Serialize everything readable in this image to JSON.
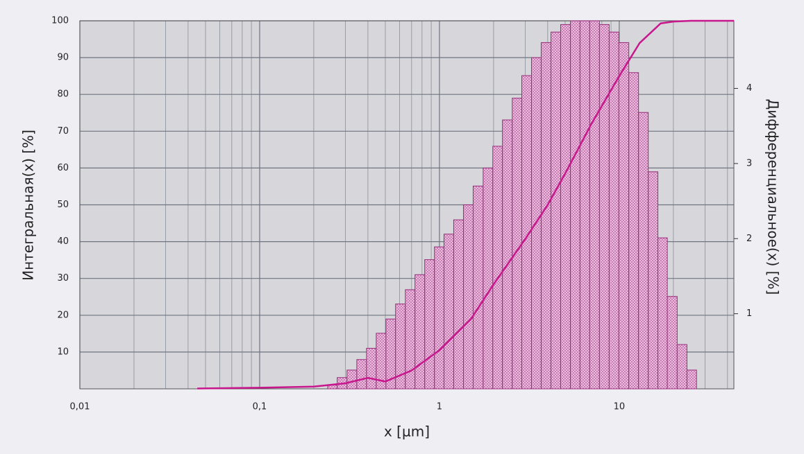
{
  "chart_data": {
    "type": "histogram",
    "x_label": "x [µm]",
    "y_label": "Интегральная(x) [%]",
    "y2_label": "Дифференциальное(x) [%]",
    "xscale": "log",
    "grid": true,
    "xlim": [
      0.01,
      43.4
    ],
    "xticks": [
      {
        "value": 0.01,
        "label": "0,01"
      },
      {
        "value": 0.1,
        "label": "0,1"
      },
      1,
      10
    ],
    "ylim": [
      0,
      100
    ],
    "yticks": [
      10,
      20,
      30,
      40,
      50,
      60,
      70,
      80,
      90,
      100
    ],
    "y2lim": [
      0,
      4.9
    ],
    "y2ticks": [
      1,
      2,
      3,
      4
    ],
    "bins": [
      0.239,
      0.27,
      0.306,
      0.347,
      0.393,
      0.445,
      0.504,
      0.57,
      0.646,
      0.731,
      0.828,
      0.938,
      1.06,
      1.2,
      1.36,
      1.54,
      1.75,
      1.98,
      2.24,
      2.54,
      2.87,
      3.25,
      3.68,
      4.17,
      4.72,
      5.35,
      6.05,
      6.85,
      7.76,
      8.79,
      9.95,
      11.3,
      12.8,
      14.5,
      16.4,
      18.5,
      21.0,
      23.8,
      26.9
    ],
    "counts": [
      0.05,
      0.15,
      0.25,
      0.39,
      0.54,
      0.74,
      0.93,
      1.13,
      1.32,
      1.52,
      1.72,
      1.89,
      2.06,
      2.25,
      2.45,
      2.7,
      2.94,
      3.23,
      3.58,
      3.87,
      4.17,
      4.41,
      4.61,
      4.75,
      4.85,
      4.9,
      4.9,
      4.9,
      4.85,
      4.75,
      4.61,
      4.21,
      3.68,
      2.89,
      2.01,
      1.23,
      0.59,
      0.25
    ],
    "counts_axis": "y2",
    "bar_color": "#f0c4e4",
    "bar_edge": "#9a2a7a",
    "line": {
      "x": [
        0.045,
        0.1,
        0.2,
        0.3,
        0.4,
        0.5,
        0.7,
        1,
        1.5,
        2,
        3,
        4,
        5,
        7,
        10,
        13,
        17,
        20,
        25,
        43.4
      ],
      "values": [
        0.1,
        0.3,
        0.6,
        1.5,
        3,
        2.0,
        5,
        10.5,
        19,
        28.4,
        40.7,
        50,
        58.5,
        72,
        85,
        94,
        99.3,
        99.8,
        100,
        100
      ],
      "color": "#c8168c"
    }
  }
}
